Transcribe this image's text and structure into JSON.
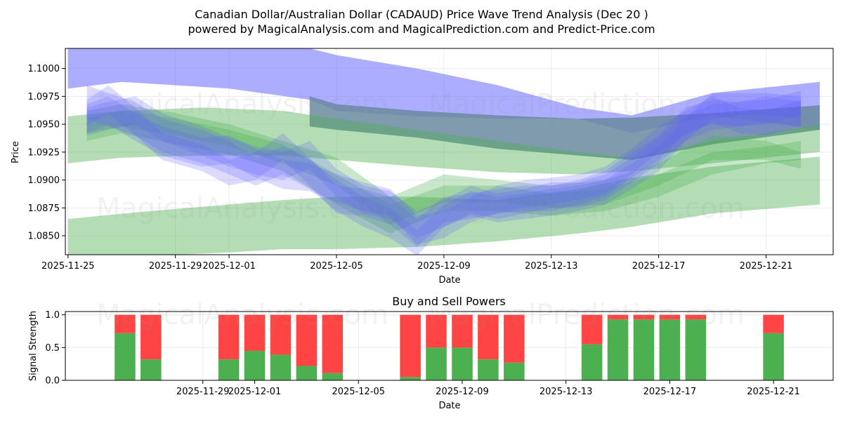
{
  "title_line1": "Canadian Dollar/Australian Dollar (CADAUD) Price Wave Trend Analysis (Dec 20 )",
  "title_line2": "powered by MagicalAnalysis.com and MagicalPrediction.com and Predict-Price.com",
  "watermarks": [
    "MagicalAnalysis.com",
    "MagicalPrediction.com"
  ],
  "colors": {
    "blue": "#5b5bff",
    "green": "#4caf50",
    "red": "#ff4444",
    "steel": "#6a8aa0"
  },
  "chart_data": [
    {
      "type": "area",
      "title": "",
      "xlabel": "Date",
      "ylabel": "Price",
      "xlim": [
        -0.1,
        28.5
      ],
      "ylim": [
        1.0833,
        1.1018
      ],
      "x_origin_date": "2025-11-25",
      "xticks": [
        {
          "x": 0,
          "label": "2025-11-25"
        },
        {
          "x": 4,
          "label": "2025-11-29"
        },
        {
          "x": 6,
          "label": "2025-12-01"
        },
        {
          "x": 10,
          "label": "2025-12-05"
        },
        {
          "x": 14,
          "label": "2025-12-09"
        },
        {
          "x": 18,
          "label": "2025-12-13"
        },
        {
          "x": 22,
          "label": "2025-12-17"
        },
        {
          "x": 26,
          "label": "2025-12-21"
        }
      ],
      "yticks": [
        1.085,
        1.0875,
        1.09,
        1.0925,
        1.095,
        1.0975,
        1.1
      ],
      "ytick_labels": [
        "1.0850",
        "1.0875",
        "1.0900",
        "1.0925",
        "1.0950",
        "1.0975",
        "1.1000"
      ],
      "grid": true,
      "bands": [
        {
          "name": "blue-upper-trend",
          "color": "blue",
          "opacity": 0.5,
          "x": [
            0,
            2,
            6,
            9,
            10,
            13,
            16,
            19,
            21,
            24,
            28
          ],
          "upper": [
            1.1025,
            1.1025,
            1.1022,
            1.1018,
            1.1012,
            1.1,
            1.0985,
            1.0965,
            1.0958,
            1.0978,
            1.0988
          ],
          "lower": [
            1.0982,
            1.0988,
            1.0982,
            1.0972,
            1.0962,
            1.0957,
            1.0955,
            1.0955,
            1.0942,
            1.0958,
            1.0945
          ]
        },
        {
          "name": "steel-mid-trend",
          "color": "steel",
          "opacity": 0.85,
          "x": [
            9,
            10,
            13,
            16,
            19,
            21,
            24,
            28
          ],
          "upper": [
            1.0975,
            1.0968,
            1.0962,
            1.0958,
            1.0955,
            1.0956,
            1.096,
            1.0967
          ],
          "lower": [
            1.0948,
            1.0945,
            1.0938,
            1.0928,
            1.0922,
            1.0918,
            1.0932,
            1.0945
          ]
        },
        {
          "name": "green-upper-trend",
          "color": "green",
          "opacity": 0.42,
          "x": [
            0,
            2,
            5,
            8,
            10,
            13,
            16,
            19,
            21,
            24,
            28
          ],
          "upper": [
            1.0957,
            1.0962,
            1.0965,
            1.0962,
            1.0955,
            1.0945,
            1.0935,
            1.0925,
            1.092,
            1.0935,
            1.095
          ],
          "lower": [
            1.0915,
            1.092,
            1.0922,
            1.0922,
            1.0918,
            1.0912,
            1.0907,
            1.0905,
            1.0908,
            1.0915,
            1.0925
          ]
        },
        {
          "name": "green-lower-trend",
          "color": "green",
          "opacity": 0.42,
          "x": [
            0,
            3,
            6,
            8,
            10,
            13,
            16,
            19,
            21,
            24,
            28
          ],
          "upper": [
            1.0865,
            1.0872,
            1.0878,
            1.0882,
            1.0885,
            1.0885,
            1.0882,
            1.0892,
            1.0902,
            1.0912,
            1.0921
          ],
          "lower": [
            1.0828,
            1.0832,
            1.0835,
            1.0838,
            1.0838,
            1.084,
            1.0845,
            1.0852,
            1.0858,
            1.087,
            1.0878
          ]
        },
        {
          "name": "green-wave-a",
          "color": "green",
          "opacity": 0.3,
          "x": [
            0.7,
            2,
            4,
            6,
            8,
            10,
            12,
            14,
            16,
            18,
            20,
            22,
            24,
            26,
            27.3
          ],
          "upper": [
            1.0955,
            1.0963,
            1.0955,
            1.0945,
            1.0932,
            1.0905,
            1.0878,
            1.0895,
            1.0895,
            1.0888,
            1.0892,
            1.0905,
            1.0925,
            1.093,
            1.0935
          ],
          "lower": [
            1.0935,
            1.0942,
            1.0932,
            1.0923,
            1.0908,
            1.0878,
            1.0852,
            1.0872,
            1.0872,
            1.0868,
            1.0872,
            1.0885,
            1.0905,
            1.0915,
            1.0918
          ]
        },
        {
          "name": "green-wave-b",
          "color": "green",
          "opacity": 0.3,
          "x": [
            0.7,
            2,
            4,
            6,
            8,
            10,
            12,
            14,
            16,
            18,
            20,
            22,
            24,
            26,
            27.3
          ],
          "upper": [
            1.0962,
            1.0968,
            1.096,
            1.095,
            1.0935,
            1.092,
            1.0885,
            1.0905,
            1.09,
            1.0895,
            1.09,
            1.0915,
            1.094,
            1.0935,
            1.0925
          ],
          "lower": [
            1.0942,
            1.0948,
            1.094,
            1.093,
            1.0915,
            1.0895,
            1.086,
            1.088,
            1.088,
            1.0875,
            1.0878,
            1.0895,
            1.0918,
            1.0918,
            1.091
          ]
        },
        {
          "name": "blue-wave-a",
          "color": "blue",
          "opacity": 0.22,
          "x": [
            0.7,
            1.5,
            2.5,
            3.5,
            5,
            6,
            7,
            8,
            9,
            10,
            11,
            12,
            13,
            14,
            15,
            16,
            17,
            18,
            19,
            20,
            21,
            22,
            23,
            24,
            25,
            26,
            27.3
          ],
          "upper": [
            1.0985,
            1.0978,
            1.097,
            1.0955,
            1.0945,
            1.0935,
            1.092,
            1.093,
            1.0918,
            1.09,
            1.0885,
            1.0875,
            1.0855,
            1.0878,
            1.089,
            1.0885,
            1.0888,
            1.0892,
            1.0895,
            1.09,
            1.0915,
            1.093,
            1.0955,
            1.0978,
            1.0978,
            1.0978,
            1.0975
          ],
          "lower": [
            1.0955,
            1.0948,
            1.094,
            1.0925,
            1.0915,
            1.0905,
            1.0895,
            1.0905,
            1.0892,
            1.0872,
            1.0858,
            1.0848,
            1.0832,
            1.0858,
            1.0868,
            1.0862,
            1.0865,
            1.0868,
            1.0872,
            1.0878,
            1.0892,
            1.0908,
            1.0935,
            1.0955,
            1.0958,
            1.0958,
            1.0955
          ]
        },
        {
          "name": "blue-wave-b",
          "color": "blue",
          "opacity": 0.22,
          "x": [
            0.7,
            1.5,
            2.5,
            3.5,
            5,
            6,
            7,
            8,
            9,
            10,
            11,
            12,
            13,
            14,
            15,
            16,
            17,
            18,
            19,
            20,
            21,
            22,
            23,
            24,
            25,
            26,
            27.3
          ],
          "upper": [
            1.0972,
            1.0985,
            1.0965,
            1.0942,
            1.0932,
            1.0918,
            1.0925,
            1.0942,
            1.092,
            1.0895,
            1.0892,
            1.0885,
            1.0865,
            1.0885,
            1.0888,
            1.0892,
            1.0895,
            1.0895,
            1.09,
            1.0908,
            1.0925,
            1.094,
            1.0965,
            1.0972,
            1.097,
            1.0975,
            1.097
          ],
          "lower": [
            1.0948,
            1.096,
            1.094,
            1.0918,
            1.0908,
            1.0895,
            1.09,
            1.0918,
            1.0895,
            1.087,
            1.0868,
            1.086,
            1.084,
            1.0862,
            1.0865,
            1.087,
            1.0872,
            1.0872,
            1.0878,
            1.0885,
            1.0902,
            1.0918,
            1.0942,
            1.095,
            1.0948,
            1.0952,
            1.0948
          ]
        },
        {
          "name": "blue-wave-c",
          "color": "blue",
          "opacity": 0.22,
          "x": [
            0.7,
            1.5,
            2.5,
            3.5,
            5,
            6,
            7,
            8,
            9,
            10,
            11,
            12,
            13,
            14,
            15,
            16,
            17,
            18,
            19,
            20,
            21,
            22,
            23,
            24,
            25,
            26,
            27.3
          ],
          "upper": [
            1.0965,
            1.097,
            1.0975,
            1.096,
            1.0948,
            1.0938,
            1.093,
            1.0925,
            1.0935,
            1.091,
            1.0895,
            1.089,
            1.0872,
            1.0882,
            1.0895,
            1.0888,
            1.0892,
            1.0898,
            1.0898,
            1.0905,
            1.092,
            1.0938,
            1.0958,
            1.0968,
            1.097,
            1.0972,
            1.098
          ],
          "lower": [
            1.094,
            1.0945,
            1.095,
            1.0935,
            1.0922,
            1.0912,
            1.0905,
            1.09,
            1.091,
            1.0885,
            1.087,
            1.0865,
            1.0848,
            1.0858,
            1.087,
            1.0865,
            1.087,
            1.0875,
            1.0875,
            1.0882,
            1.0898,
            1.0915,
            1.0935,
            1.0945,
            1.0948,
            1.095,
            1.0958
          ]
        },
        {
          "name": "blue-wave-d",
          "color": "blue",
          "opacity": 0.22,
          "x": [
            0.7,
            1.5,
            2.5,
            3.5,
            5,
            6,
            7,
            8,
            9,
            10,
            11,
            12,
            13,
            14,
            15,
            16,
            17,
            18,
            19,
            20,
            21,
            22,
            23,
            24,
            25,
            26,
            27.3
          ],
          "upper": [
            1.0968,
            1.0975,
            1.096,
            1.0948,
            1.0938,
            1.094,
            1.0928,
            1.0918,
            1.0915,
            1.0905,
            1.0898,
            1.0892,
            1.0868,
            1.0872,
            1.0885,
            1.0895,
            1.09,
            1.0902,
            1.0905,
            1.0912,
            1.0928,
            1.0948,
            1.0962,
            1.0975,
            1.0965,
            1.0962,
            1.0972
          ],
          "lower": [
            1.0942,
            1.095,
            1.0935,
            1.0922,
            1.0912,
            1.0915,
            1.0902,
            1.0892,
            1.089,
            1.088,
            1.0872,
            1.0868,
            1.0842,
            1.0848,
            1.0862,
            1.087,
            1.0875,
            1.0878,
            1.0882,
            1.0888,
            1.0905,
            1.0925,
            1.094,
            1.0952,
            1.0942,
            1.094,
            1.0948
          ]
        }
      ]
    },
    {
      "type": "bar",
      "title": "Buy and Sell Powers",
      "xlabel": "Date",
      "ylabel": "Signal Strength",
      "xlim": [
        -1.3,
        28.3
      ],
      "ylim": [
        0,
        1.05
      ],
      "x_origin_date": "2025-11-25",
      "xticks": [
        {
          "x": 4,
          "label": "2025-11-29"
        },
        {
          "x": 6,
          "label": "2025-12-01"
        },
        {
          "x": 10,
          "label": "2025-12-05"
        },
        {
          "x": 14,
          "label": "2025-12-09"
        },
        {
          "x": 18,
          "label": "2025-12-13"
        },
        {
          "x": 22,
          "label": "2025-12-17"
        },
        {
          "x": 26,
          "label": "2025-12-21"
        }
      ],
      "yticks": [
        0,
        0.5,
        1
      ],
      "ytick_labels": [
        "0.0",
        "0.5",
        "1.0"
      ],
      "grid": true,
      "x": [
        1,
        2,
        5,
        6,
        7,
        8,
        9,
        12,
        13,
        14,
        15,
        16,
        19,
        20,
        21,
        22,
        23,
        26
      ],
      "series": [
        {
          "name": "Buy",
          "color": "green",
          "values": [
            0.72,
            0.32,
            0.32,
            0.45,
            0.39,
            0.22,
            0.11,
            0.05,
            0.5,
            0.5,
            0.32,
            0.27,
            0.55,
            0.93,
            0.93,
            0.93,
            0.93,
            0.72
          ]
        },
        {
          "name": "Sell",
          "color": "red",
          "values": [
            0.28,
            0.68,
            0.68,
            0.55,
            0.61,
            0.78,
            0.89,
            0.95,
            0.5,
            0.5,
            0.68,
            0.73,
            0.45,
            0.07,
            0.07,
            0.07,
            0.07,
            0.28
          ]
        }
      ]
    }
  ]
}
